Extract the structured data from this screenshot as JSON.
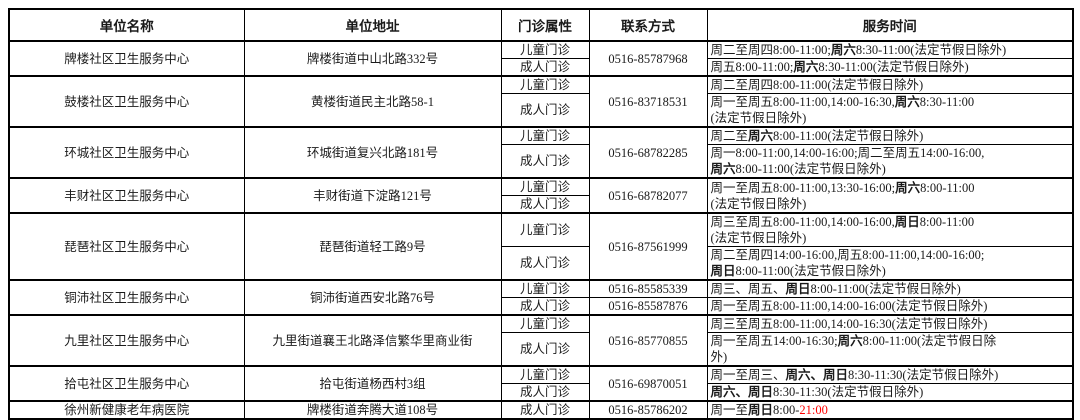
{
  "colors": {
    "red": "#ff0000",
    "border": "#000000",
    "text": "#1a1a1a",
    "background": "#ffffff"
  },
  "header": {
    "columns": [
      "单位名称",
      "单位地址",
      "门诊属性",
      "联系方式",
      "服务时间"
    ]
  },
  "rows": [
    {
      "name": "牌楼社区卫生服务中心",
      "address": "牌楼街道中山北路332号",
      "phone": "0516-85787968",
      "subs": [
        {
          "type": "儿童门诊",
          "time": [
            {
              "t": "周二至周四8:00-11:00;"
            },
            {
              "t": "周六",
              "b": true
            },
            {
              "t": "8:30-11:00(法定节假日除外)"
            }
          ]
        },
        {
          "type": "成人门诊",
          "time": [
            {
              "t": "周五8:00-11:00;"
            },
            {
              "t": "周六",
              "b": true
            },
            {
              "t": "8:30-11:00(法定节假日除外)"
            }
          ]
        }
      ]
    },
    {
      "name": "鼓楼社区卫生服务中心",
      "address": "黄楼街道民主北路58-1",
      "phone": "0516-83718531",
      "subs": [
        {
          "type": "儿童门诊",
          "time": [
            {
              "t": "周二至周四8:00-11:00(法定节假日除外)"
            }
          ]
        },
        {
          "type": "成人门诊",
          "time": [
            {
              "t": "周一至周五8:00-11:00,14:00-16:30,"
            },
            {
              "t": "周六",
              "b": true
            },
            {
              "t": "8:30-11:00"
            },
            {
              "br": true
            },
            {
              "t": "(法定节假日除外)"
            }
          ]
        }
      ]
    },
    {
      "name": "环城社区卫生服务中心",
      "address": "环城街道复兴北路181号",
      "phone": "0516-68782285",
      "subs": [
        {
          "type": "儿童门诊",
          "time": [
            {
              "t": "周二至"
            },
            {
              "t": "周六",
              "b": true
            },
            {
              "t": "8:00-11:00(法定节假日除外)"
            }
          ]
        },
        {
          "type": "成人门诊",
          "time": [
            {
              "t": "周一8:00-11:00,14:00-16:00;周二至周五14:00-16:00,"
            },
            {
              "br": true
            },
            {
              "t": "周六",
              "b": true
            },
            {
              "t": "8:00-11:00(法定节假日除外)"
            }
          ]
        }
      ]
    },
    {
      "name": "丰财社区卫生服务中心",
      "address": "丰财街道下淀路121号",
      "phone": "0516-68782077",
      "subs": [
        {
          "type": "儿童门诊",
          "timeRowspan": 2,
          "time": [
            {
              "t": "周一至周五8:00-11:00,13:30-16:00;"
            },
            {
              "t": "周六",
              "b": true
            },
            {
              "t": "8:00-11:00"
            },
            {
              "br": true
            },
            {
              "t": "(法定节假日除外)"
            }
          ]
        },
        {
          "type": "成人门诊"
        }
      ]
    },
    {
      "name": "琵琶社区卫生服务中心",
      "address": "琵琶街道轻工路9号",
      "phone": "0516-87561999",
      "subs": [
        {
          "type": "儿童门诊",
          "time": [
            {
              "t": "周三至周五8:00-11:00,14:00-16:00,"
            },
            {
              "t": "周日",
              "b": true
            },
            {
              "t": "8:00-11:00"
            },
            {
              "br": true
            },
            {
              "t": "(法定节假日除外)"
            }
          ]
        },
        {
          "type": "成人门诊",
          "time": [
            {
              "t": "周二至周四14:00-16:00,周五8:00-11:00,14:00-16:00;"
            },
            {
              "br": true
            },
            {
              "t": "周日",
              "b": true
            },
            {
              "t": "8:00-11:00(法定节假日除外)"
            }
          ]
        }
      ]
    },
    {
      "name": "铜沛社区卫生服务中心",
      "address": "铜沛街道西安北路76号",
      "subs": [
        {
          "type": "儿童门诊",
          "phone": "0516-85585339",
          "time": [
            {
              "t": "周三、周五、"
            },
            {
              "t": "周日",
              "b": true
            },
            {
              "t": "8:00-11:00(法定节假日除外)"
            }
          ]
        },
        {
          "type": "成人门诊",
          "phone": "0516-85587876",
          "time": [
            {
              "t": "周一至周五8:00-11:00,14:00-16:00(法定节假日除外)"
            }
          ]
        }
      ]
    },
    {
      "name": "九里社区卫生服务中心",
      "address": "九里街道襄王北路泽信繁华里商业街",
      "phone": "0516-85770855",
      "subs": [
        {
          "type": "儿童门诊",
          "time": [
            {
              "t": "周三至周五8:00-11:00,14:00-16:30(法定节假日除外)"
            }
          ]
        },
        {
          "type": "成人门诊",
          "time": [
            {
              "t": "周一至周五14:00-16:30;"
            },
            {
              "t": "周六",
              "b": true
            },
            {
              "t": "8:00-11:00(法定节假日除"
            },
            {
              "br": true
            },
            {
              "t": "外)"
            }
          ]
        }
      ]
    },
    {
      "name": "拾屯社区卫生服务中心",
      "address": "拾屯街道杨西村3组",
      "phone": "0516-69870051",
      "subs": [
        {
          "type": "儿童门诊",
          "time": [
            {
              "t": "周一至周三、"
            },
            {
              "t": "周六、周日",
              "b": true
            },
            {
              "t": "8:30-11:30(法定节假日除外)"
            }
          ]
        },
        {
          "type": "成人门诊",
          "time": [
            {
              "t": "周六、周日",
              "b": true
            },
            {
              "t": "8:30-11:30(法定节假日除外)"
            }
          ]
        }
      ]
    },
    {
      "name": "徐州新健康老年病医院",
      "address": "牌楼街道奔腾大道108号",
      "phone": "0516-85786202",
      "subs": [
        {
          "type": "成人门诊",
          "time": [
            {
              "t": "周一至"
            },
            {
              "t": "周日",
              "b": true
            },
            {
              "t": "8:00-"
            },
            {
              "t": "21:00",
              "r": true
            }
          ]
        }
      ]
    }
  ]
}
